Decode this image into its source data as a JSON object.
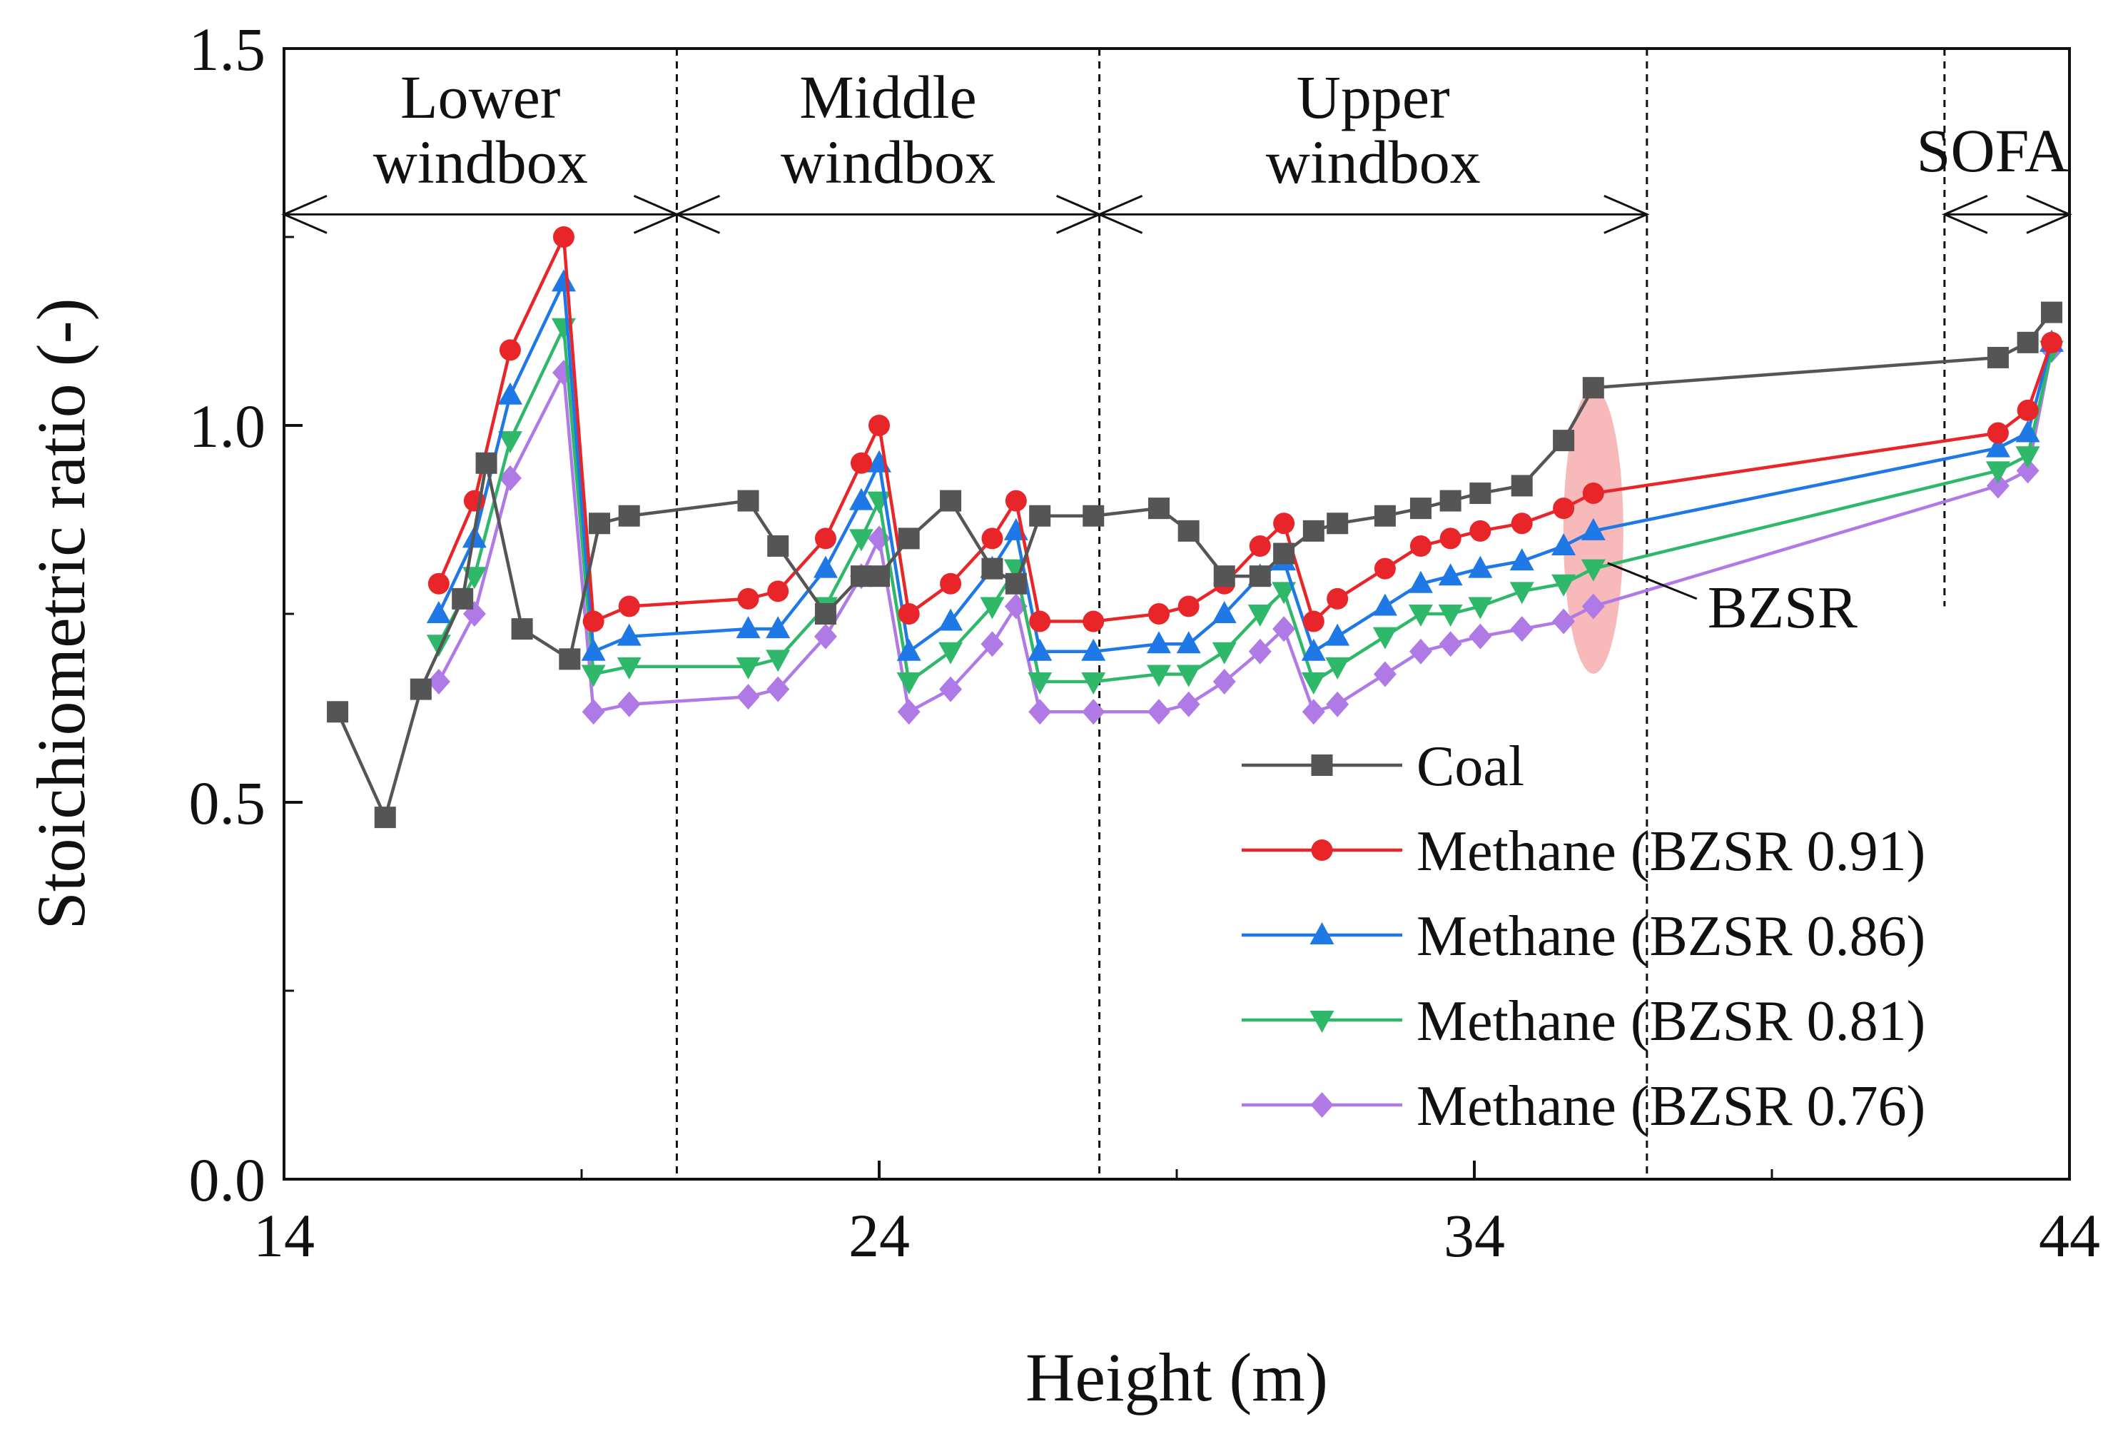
{
  "chart_data": {
    "type": "line",
    "xlabel": "Height (m)",
    "ylabel": "Stoichiometric ratio (-)",
    "xlim": [
      14,
      44
    ],
    "ylim": [
      0.0,
      1.5
    ],
    "xticks": [
      "14",
      "24",
      "34",
      "44"
    ],
    "yticks": [
      "0.0",
      "0.5",
      "1.0",
      "1.5"
    ],
    "xtick_values": [
      14,
      24,
      34,
      44
    ],
    "ytick_values": [
      0.0,
      0.5,
      1.0,
      1.5
    ],
    "x_minor_values": [
      19,
      29,
      39
    ],
    "y_minor_values": [
      0.25,
      0.75,
      1.25
    ],
    "grid": false,
    "legend_position": "bottom-right",
    "dividers_x": [
      20.6,
      27.7,
      36.9,
      41.9
    ],
    "regions": [
      {
        "line1": "Lower",
        "line2": "windbox",
        "x_start": 14,
        "x_end": 20.6
      },
      {
        "line1": "Middle",
        "line2": "windbox",
        "x_start": 20.6,
        "x_end": 27.7
      },
      {
        "line1": "Upper",
        "line2": "windbox",
        "x_start": 27.7,
        "x_end": 36.9
      },
      {
        "line1": "SOFA",
        "line2": "",
        "x_start": 41.9,
        "x_end": 44
      }
    ],
    "annotation": {
      "text": "BZSR",
      "x": 36.0,
      "y": 0.86
    },
    "series": [
      {
        "name": "Coal",
        "color": "#555555",
        "marker": "square",
        "x": [
          14.9,
          15.7,
          16.3,
          17.0,
          17.4,
          18.0,
          18.8,
          19.3,
          19.8,
          21.8,
          22.3,
          23.1,
          23.7,
          24.0,
          24.5,
          25.2,
          25.9,
          26.3,
          26.7,
          27.6,
          28.7,
          29.2,
          29.8,
          30.4,
          30.8,
          31.3,
          31.7,
          32.5,
          33.1,
          33.6,
          34.1,
          34.8,
          35.5,
          36.0,
          42.8,
          43.3,
          43.7
        ],
        "y": [
          0.62,
          0.48,
          0.65,
          0.77,
          0.95,
          0.73,
          0.69,
          0.87,
          0.88,
          0.9,
          0.84,
          0.75,
          0.8,
          0.8,
          0.85,
          0.9,
          0.81,
          0.79,
          0.88,
          0.88,
          0.89,
          0.86,
          0.8,
          0.8,
          0.83,
          0.86,
          0.87,
          0.88,
          0.89,
          0.9,
          0.91,
          0.92,
          0.98,
          1.05,
          1.09,
          1.11,
          1.15
        ]
      },
      {
        "name": "Methane (BZSR 0.91)",
        "color": "#e8262a",
        "marker": "circle",
        "x": [
          16.6,
          17.2,
          17.8,
          18.7,
          19.2,
          19.8,
          21.8,
          22.3,
          23.1,
          23.7,
          24.0,
          24.5,
          25.2,
          25.9,
          26.3,
          26.7,
          27.6,
          28.7,
          29.2,
          29.8,
          30.4,
          30.8,
          31.3,
          31.7,
          32.5,
          33.1,
          33.6,
          34.1,
          34.8,
          35.5,
          36.0,
          42.8,
          43.3,
          43.7
        ],
        "y": [
          0.79,
          0.9,
          1.1,
          1.25,
          0.74,
          0.76,
          0.77,
          0.78,
          0.85,
          0.95,
          1.0,
          0.75,
          0.79,
          0.85,
          0.9,
          0.74,
          0.74,
          0.75,
          0.76,
          0.79,
          0.84,
          0.87,
          0.74,
          0.77,
          0.81,
          0.84,
          0.85,
          0.86,
          0.87,
          0.89,
          0.91,
          0.99,
          1.02,
          1.11
        ]
      },
      {
        "name": "Methane (BZSR 0.86)",
        "color": "#1e78e6",
        "marker": "triangle-up",
        "x": [
          16.6,
          17.2,
          17.8,
          18.7,
          19.2,
          19.8,
          21.8,
          22.3,
          23.1,
          23.7,
          24.0,
          24.5,
          25.2,
          25.9,
          26.3,
          26.7,
          27.6,
          28.7,
          29.2,
          29.8,
          30.4,
          30.8,
          31.3,
          31.7,
          32.5,
          33.1,
          33.6,
          34.1,
          34.8,
          35.5,
          36.0,
          42.8,
          43.3,
          43.7
        ],
        "y": [
          0.75,
          0.85,
          1.04,
          1.19,
          0.7,
          0.72,
          0.73,
          0.73,
          0.81,
          0.9,
          0.95,
          0.7,
          0.74,
          0.81,
          0.86,
          0.7,
          0.7,
          0.71,
          0.71,
          0.75,
          0.8,
          0.82,
          0.7,
          0.72,
          0.76,
          0.79,
          0.8,
          0.81,
          0.82,
          0.84,
          0.86,
          0.97,
          0.99,
          1.11
        ]
      },
      {
        "name": "Methane (BZSR 0.81)",
        "color": "#2fb86a",
        "marker": "triangle-down",
        "x": [
          16.6,
          17.2,
          17.8,
          18.7,
          19.2,
          19.8,
          21.8,
          22.3,
          23.1,
          23.7,
          24.0,
          24.5,
          25.2,
          25.9,
          26.3,
          26.7,
          27.6,
          28.7,
          29.2,
          29.8,
          30.4,
          30.8,
          31.3,
          31.7,
          32.5,
          33.1,
          33.6,
          34.1,
          34.8,
          35.5,
          36.0,
          42.8,
          43.3,
          43.7
        ],
        "y": [
          0.71,
          0.8,
          0.98,
          1.13,
          0.67,
          0.68,
          0.68,
          0.69,
          0.76,
          0.85,
          0.9,
          0.66,
          0.7,
          0.76,
          0.81,
          0.66,
          0.66,
          0.67,
          0.67,
          0.7,
          0.75,
          0.78,
          0.66,
          0.68,
          0.72,
          0.75,
          0.75,
          0.76,
          0.78,
          0.79,
          0.81,
          0.94,
          0.96,
          1.1
        ]
      },
      {
        "name": "Methane (BZSR 0.76)",
        "color": "#b07ae6",
        "marker": "diamond",
        "x": [
          16.6,
          17.2,
          17.8,
          18.7,
          19.2,
          19.8,
          21.8,
          22.3,
          23.1,
          23.7,
          24.0,
          24.5,
          25.2,
          25.9,
          26.3,
          26.7,
          27.6,
          28.7,
          29.2,
          29.8,
          30.4,
          30.8,
          31.3,
          31.7,
          32.5,
          33.1,
          33.6,
          34.1,
          34.8,
          35.5,
          36.0,
          42.8,
          43.3,
          43.7
        ],
        "y": [
          0.66,
          0.75,
          0.93,
          1.07,
          0.62,
          0.63,
          0.64,
          0.65,
          0.72,
          0.8,
          0.85,
          0.62,
          0.65,
          0.71,
          0.76,
          0.62,
          0.62,
          0.62,
          0.63,
          0.66,
          0.7,
          0.73,
          0.62,
          0.63,
          0.67,
          0.7,
          0.71,
          0.72,
          0.73,
          0.74,
          0.76,
          0.92,
          0.94,
          1.1
        ]
      }
    ]
  }
}
